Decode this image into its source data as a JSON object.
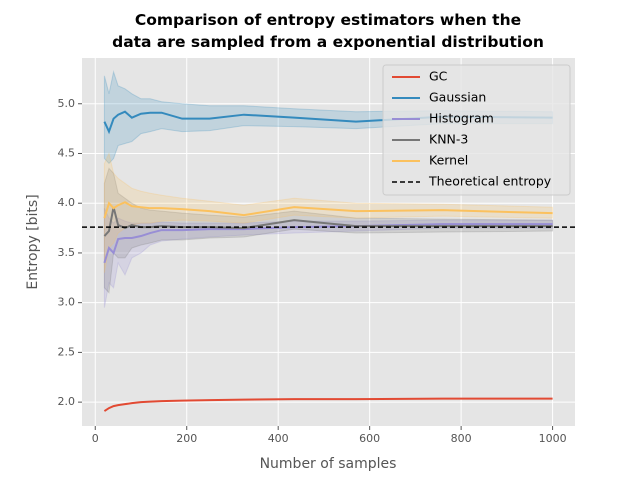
{
  "chart_data": {
    "type": "line",
    "title": "Comparison of entropy estimators when the\ndata are sampled from a exponential distribution",
    "xlabel": "Number of samples",
    "ylabel": "Entropy [bits]",
    "x": [
      20,
      30,
      40,
      50,
      65,
      80,
      100,
      120,
      145,
      190,
      250,
      325,
      435,
      570,
      760,
      1000
    ],
    "series": [
      {
        "name": "GC",
        "color": "#E24A33",
        "values": [
          1.91,
          1.94,
          1.96,
          1.97,
          1.98,
          1.99,
          2.0,
          2.005,
          2.01,
          2.015,
          2.02,
          2.025,
          2.03,
          2.03,
          2.035,
          2.035
        ]
      },
      {
        "name": "Gaussian",
        "color": "#348ABD",
        "values": [
          4.82,
          4.72,
          4.85,
          4.89,
          4.92,
          4.86,
          4.9,
          4.91,
          4.91,
          4.85,
          4.85,
          4.89,
          4.86,
          4.82,
          4.87,
          4.86
        ],
        "upper": [
          5.28,
          5.1,
          5.32,
          5.18,
          5.15,
          5.1,
          5.05,
          5.05,
          5.02,
          5.0,
          4.98,
          4.98,
          4.95,
          4.92,
          4.93,
          4.92
        ],
        "lower": [
          4.45,
          4.4,
          4.45,
          4.58,
          4.6,
          4.62,
          4.7,
          4.72,
          4.75,
          4.72,
          4.73,
          4.78,
          4.77,
          4.75,
          4.8,
          4.8
        ]
      },
      {
        "name": "Histogram",
        "color": "#988ED5",
        "values": [
          3.4,
          3.55,
          3.5,
          3.64,
          3.65,
          3.65,
          3.67,
          3.7,
          3.73,
          3.73,
          3.74,
          3.74,
          3.76,
          3.77,
          3.79,
          3.79
        ],
        "upper": [
          3.95,
          3.85,
          3.8,
          3.85,
          3.82,
          3.8,
          3.8,
          3.8,
          3.81,
          3.8,
          3.8,
          3.8,
          3.82,
          3.82,
          3.83,
          3.83
        ],
        "lower": [
          2.95,
          3.2,
          3.15,
          3.4,
          3.28,
          3.45,
          3.5,
          3.58,
          3.62,
          3.64,
          3.66,
          3.68,
          3.7,
          3.72,
          3.75,
          3.75
        ]
      },
      {
        "name": "KNN-3",
        "color": "#777777",
        "values": [
          3.67,
          3.72,
          3.96,
          3.78,
          3.75,
          3.78,
          3.76,
          3.76,
          3.77,
          3.76,
          3.76,
          3.75,
          3.83,
          3.77,
          3.77,
          3.77
        ],
        "upper": [
          4.2,
          4.35,
          4.3,
          4.1,
          4.05,
          4.0,
          3.95,
          3.93,
          3.92,
          3.9,
          3.88,
          3.86,
          3.92,
          3.85,
          3.84,
          3.83
        ],
        "lower": [
          3.15,
          3.1,
          3.5,
          3.45,
          3.45,
          3.55,
          3.58,
          3.6,
          3.63,
          3.63,
          3.65,
          3.66,
          3.74,
          3.7,
          3.71,
          3.72
        ]
      },
      {
        "name": "Kernel",
        "color": "#FBC15E",
        "values": [
          3.85,
          4.0,
          3.95,
          3.98,
          4.01,
          3.97,
          3.96,
          3.95,
          3.95,
          3.94,
          3.92,
          3.88,
          3.96,
          3.92,
          3.93,
          3.9
        ],
        "upper": [
          4.4,
          4.5,
          4.3,
          4.25,
          4.2,
          4.15,
          4.12,
          4.1,
          4.08,
          4.05,
          4.02,
          3.98,
          4.05,
          4.0,
          3.99,
          3.96
        ],
        "lower": [
          3.3,
          3.55,
          3.6,
          3.7,
          3.75,
          3.78,
          3.8,
          3.8,
          3.82,
          3.83,
          3.82,
          3.8,
          3.88,
          3.85,
          3.87,
          3.85
        ]
      }
    ],
    "reference": {
      "name": "Theoretical entropy",
      "value": 3.76,
      "color": "#000000",
      "dashed": true
    },
    "xlim": [
      -29,
      1049
    ],
    "xticks": [
      0,
      200,
      400,
      600,
      800,
      1000
    ],
    "ylim": [
      1.76,
      5.46
    ],
    "yticks": [
      {
        "value": 2,
        "label": "2.0"
      },
      2.5,
      {
        "value": 3,
        "label": "3.0"
      },
      3.5,
      {
        "value": 4,
        "label": "4.0"
      },
      4.5,
      {
        "value": 5,
        "label": "5.0"
      }
    ],
    "grid": true,
    "legend": "upper right"
  }
}
